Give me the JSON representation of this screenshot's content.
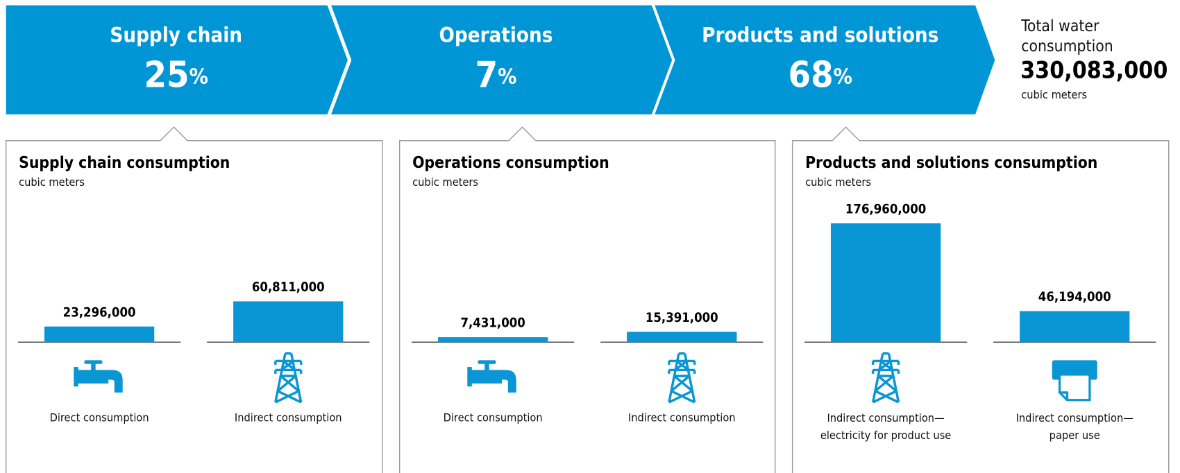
{
  "header": {
    "segments": [
      {
        "name": "Supply chain",
        "value": 25,
        "value_label": "25%"
      },
      {
        "name": "Operations",
        "value": 7,
        "value_label": "7%"
      },
      {
        "name": "Products and solutions",
        "value": 68,
        "value_label": "68%"
      }
    ],
    "total": {
      "title": "Total water\nconsumption",
      "value": 330083000,
      "value_label": "330,083,000",
      "unit": "cubic meters"
    }
  },
  "chart_data": [
    {
      "type": "bar",
      "title": "Supply chain consumption",
      "subtitle": "cubic meters",
      "categories": [
        "Direct consumption",
        "Indirect consumption"
      ],
      "values": [
        23296000,
        60811000
      ],
      "value_labels": [
        "23,296,000",
        "60,811,000"
      ],
      "color": "#0a96d4"
    },
    {
      "type": "bar",
      "title": "Operations consumption",
      "subtitle": "cubic meters",
      "categories": [
        "Direct consumption",
        "Indirect consumption"
      ],
      "values": [
        7431000,
        15391000
      ],
      "value_labels": [
        "7,431,000",
        "15,391,000"
      ],
      "color": "#0a96d4"
    },
    {
      "type": "bar",
      "title": "Products and solutions consumption",
      "subtitle": "cubic meters",
      "categories": [
        "Indirect consumption—\nelectricity for product use",
        "Indirect consumption—\npaper use"
      ],
      "values": [
        176960000,
        46194000
      ],
      "value_labels": [
        "176,960,000",
        "46,194,000"
      ],
      "color": "#0a96d4"
    }
  ]
}
